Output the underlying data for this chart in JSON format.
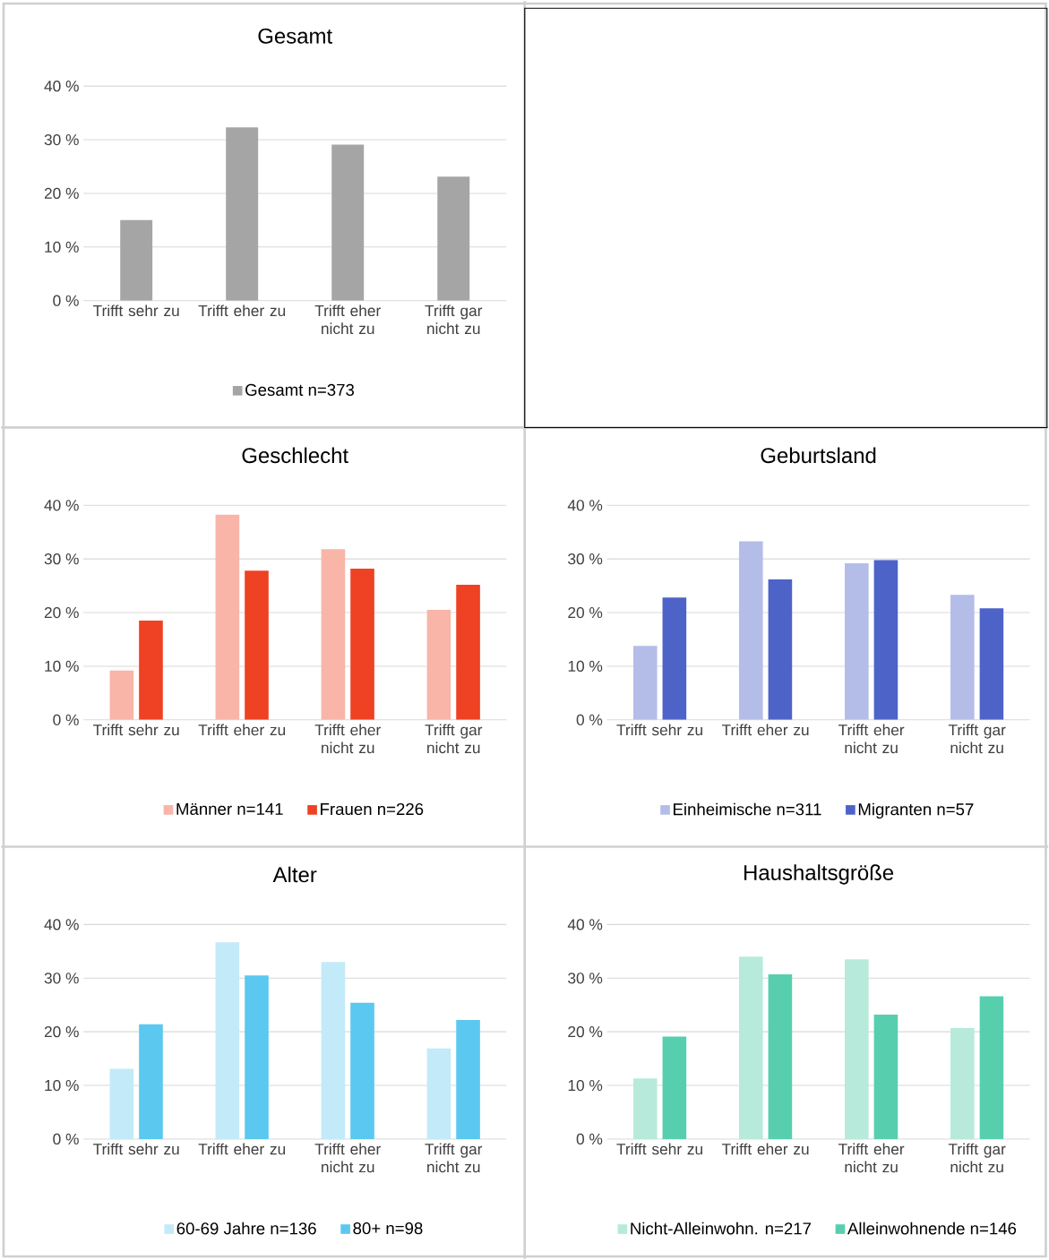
{
  "chart_data": [
    {
      "type": "bar",
      "title": "Gesamt",
      "categories": [
        "Trifft sehr zu",
        "Trifft eher zu",
        "Trifft eher nicht zu",
        "Trifft gar nicht zu"
      ],
      "series": [
        {
          "name": "Gesamt n=373",
          "color": "#a5a5a5",
          "values": [
            15.0,
            32.3,
            29.1,
            23.1
          ]
        }
      ],
      "ylim": [
        0,
        40
      ],
      "yticks": [
        {
          "value": 0,
          "label": "0 %"
        },
        {
          "value": 10,
          "label": "10 %"
        },
        {
          "value": 20,
          "label": "20 %"
        },
        {
          "value": 30,
          "label": "30 %"
        },
        {
          "value": 40,
          "label": "40 %"
        }
      ],
      "grid": "y",
      "legend": "bottom"
    },
    {
      "type": "bar",
      "title": "Geschlecht",
      "categories": [
        "Trifft sehr zu",
        "Trifft eher zu",
        "Trifft eher nicht zu",
        "Trifft gar nicht zu"
      ],
      "series": [
        {
          "name": "Männer n=141",
          "color": "#f8b5a8",
          "values": [
            9.2,
            38.3,
            31.8,
            20.5
          ]
        },
        {
          "name": "Frauen n=226",
          "color": "#ef4123",
          "values": [
            18.5,
            27.8,
            28.2,
            25.2
          ]
        }
      ],
      "ylim": [
        0,
        40
      ],
      "yticks": [
        {
          "value": 0,
          "label": "0 %"
        },
        {
          "value": 10,
          "label": "10 %"
        },
        {
          "value": 20,
          "label": "20 %"
        },
        {
          "value": 30,
          "label": "30 %"
        },
        {
          "value": 40,
          "label": "40 %"
        }
      ],
      "grid": "y",
      "legend": "bottom"
    },
    {
      "type": "bar",
      "title": "Geburtsland",
      "categories": [
        "Trifft sehr zu",
        "Trifft eher zu",
        "Trifft eher nicht zu",
        "Trifft gar nicht zu"
      ],
      "series": [
        {
          "name": "Einheimische n=311",
          "color": "#b4bde8",
          "values": [
            13.8,
            33.3,
            29.2,
            23.3
          ]
        },
        {
          "name": "Migranten n=57",
          "color": "#4e63c8",
          "values": [
            22.8,
            26.2,
            29.8,
            20.8
          ]
        }
      ],
      "ylim": [
        0,
        40
      ],
      "yticks": [
        {
          "value": 0,
          "label": "0 %"
        },
        {
          "value": 10,
          "label": "10 %"
        },
        {
          "value": 20,
          "label": "20 %"
        },
        {
          "value": 30,
          "label": "30 %"
        },
        {
          "value": 40,
          "label": "40 %"
        }
      ],
      "grid": "y",
      "legend": "bottom"
    },
    {
      "type": "bar",
      "title": "Alter",
      "categories": [
        "Trifft sehr zu",
        "Trifft eher zu",
        "Trifft eher nicht zu",
        "Trifft gar nicht zu"
      ],
      "series": [
        {
          "name": "60-69 Jahre n=136",
          "color": "#c3eaf8",
          "values": [
            13.1,
            36.7,
            33.0,
            16.9
          ]
        },
        {
          "name": "80+  n=98",
          "color": "#5bc8f0",
          "values": [
            21.4,
            30.5,
            25.4,
            22.2
          ]
        }
      ],
      "ylim": [
        0,
        40
      ],
      "yticks": [
        {
          "value": 0,
          "label": "0 %"
        },
        {
          "value": 10,
          "label": "10 %"
        },
        {
          "value": 20,
          "label": "20 %"
        },
        {
          "value": 30,
          "label": "30 %"
        },
        {
          "value": 40,
          "label": "40 %"
        }
      ],
      "grid": "y",
      "legend": "bottom"
    },
    {
      "type": "bar",
      "title": "Haushaltsgröße",
      "categories": [
        "Trifft sehr zu",
        "Trifft eher zu",
        "Trifft eher nicht zu",
        "Trifft gar nicht zu"
      ],
      "series": [
        {
          "name": "Nicht-Alleinwohn. n=217",
          "color": "#b8eadb",
          "values": [
            11.3,
            34.0,
            33.5,
            20.7
          ]
        },
        {
          "name": "Alleinwohnende n=146",
          "color": "#57cfaf",
          "values": [
            19.1,
            30.7,
            23.2,
            26.6
          ]
        }
      ],
      "ylim": [
        0,
        40
      ],
      "yticks": [
        {
          "value": 0,
          "label": "0 %"
        },
        {
          "value": 10,
          "label": "10 %"
        },
        {
          "value": 20,
          "label": "20 %"
        },
        {
          "value": 30,
          "label": "30 %"
        },
        {
          "value": 40,
          "label": "40 %"
        }
      ],
      "grid": "y",
      "legend": "bottom"
    }
  ]
}
